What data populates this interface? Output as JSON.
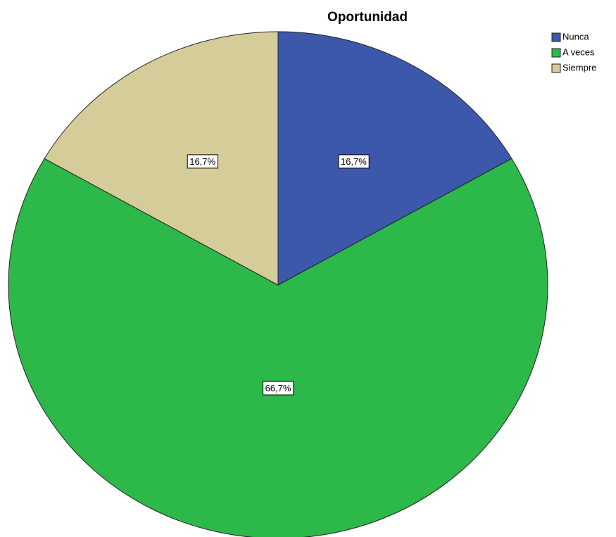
{
  "chart_data": {
    "type": "pie",
    "title": "Oportunidad",
    "categories": [
      "Nunca",
      "A veces",
      "Siempre"
    ],
    "values": [
      16.7,
      66.7,
      16.7
    ],
    "value_labels": [
      "16,7%",
      "66,7%",
      "16,7%"
    ],
    "colors": [
      "#3c58ab",
      "#2db84a",
      "#d4cc99"
    ],
    "legend": "top-right"
  }
}
